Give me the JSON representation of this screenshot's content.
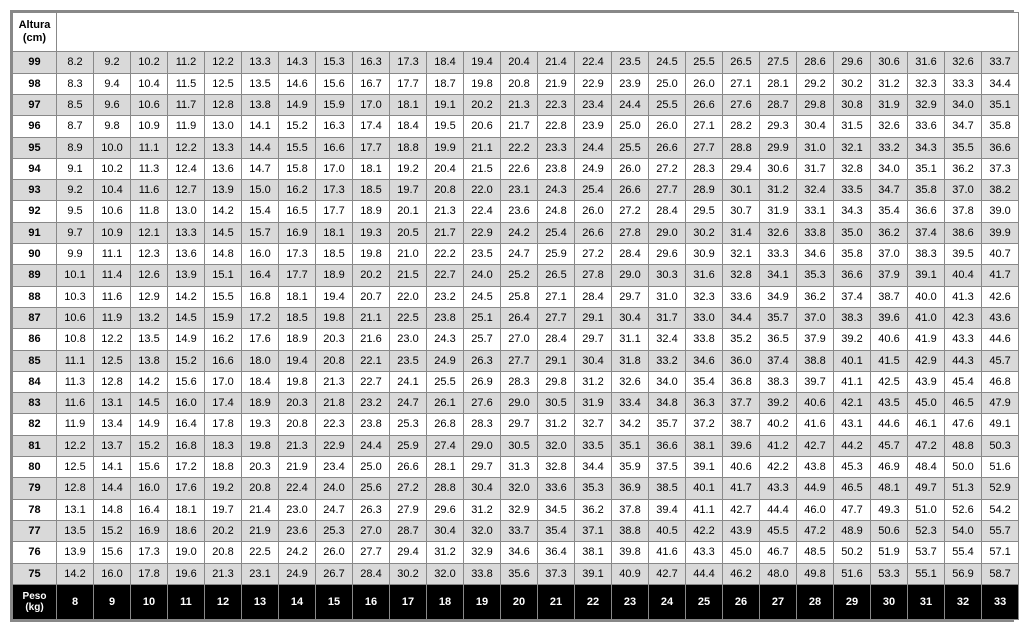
{
  "table": {
    "type": "table",
    "header_label": "Altura\n(cm)",
    "footer_label": "Peso\n(kg)",
    "background_color": "#ffffff",
    "shaded_row_color": "#d9d9d9",
    "footer_bg": "#000000",
    "footer_fg": "#ffffff",
    "border_color": "#888888",
    "font_size": 11,
    "alturas": [
      99,
      98,
      97,
      96,
      95,
      94,
      93,
      92,
      91,
      90,
      89,
      88,
      87,
      86,
      85,
      84,
      83,
      82,
      81,
      80,
      79,
      78,
      77,
      76,
      75
    ],
    "shaded_alturas": [
      99,
      97,
      95,
      93,
      91,
      89,
      87,
      85,
      83,
      81,
      79,
      77,
      75
    ],
    "pesos": [
      8,
      9,
      10,
      11,
      12,
      13,
      14,
      15,
      16,
      17,
      18,
      19,
      20,
      21,
      22,
      23,
      24,
      25,
      26,
      27,
      28,
      29,
      30,
      31,
      32,
      33
    ],
    "rows": {
      "99": [
        "8.2",
        "9.2",
        "10.2",
        "11.2",
        "12.2",
        "13.3",
        "14.3",
        "15.3",
        "16.3",
        "17.3",
        "18.4",
        "19.4",
        "20.4",
        "21.4",
        "22.4",
        "23.5",
        "24.5",
        "25.5",
        "26.5",
        "27.5",
        "28.6",
        "29.6",
        "30.6",
        "31.6",
        "32.6",
        "33.7"
      ],
      "98": [
        "8.3",
        "9.4",
        "10.4",
        "11.5",
        "12.5",
        "13.5",
        "14.6",
        "15.6",
        "16.7",
        "17.7",
        "18.7",
        "19.8",
        "20.8",
        "21.9",
        "22.9",
        "23.9",
        "25.0",
        "26.0",
        "27.1",
        "28.1",
        "29.2",
        "30.2",
        "31.2",
        "32.3",
        "33.3",
        "34.4"
      ],
      "97": [
        "8.5",
        "9.6",
        "10.6",
        "11.7",
        "12.8",
        "13.8",
        "14.9",
        "15.9",
        "17.0",
        "18.1",
        "19.1",
        "20.2",
        "21.3",
        "22.3",
        "23.4",
        "24.4",
        "25.5",
        "26.6",
        "27.6",
        "28.7",
        "29.8",
        "30.8",
        "31.9",
        "32.9",
        "34.0",
        "35.1"
      ],
      "96": [
        "8.7",
        "9.8",
        "10.9",
        "11.9",
        "13.0",
        "14.1",
        "15.2",
        "16.3",
        "17.4",
        "18.4",
        "19.5",
        "20.6",
        "21.7",
        "22.8",
        "23.9",
        "25.0",
        "26.0",
        "27.1",
        "28.2",
        "29.3",
        "30.4",
        "31.5",
        "32.6",
        "33.6",
        "34.7",
        "35.8"
      ],
      "95": [
        "8.9",
        "10.0",
        "11.1",
        "12.2",
        "13.3",
        "14.4",
        "15.5",
        "16.6",
        "17.7",
        "18.8",
        "19.9",
        "21.1",
        "22.2",
        "23.3",
        "24.4",
        "25.5",
        "26.6",
        "27.7",
        "28.8",
        "29.9",
        "31.0",
        "32.1",
        "33.2",
        "34.3",
        "35.5",
        "36.6"
      ],
      "94": [
        "9.1",
        "10.2",
        "11.3",
        "12.4",
        "13.6",
        "14.7",
        "15.8",
        "17.0",
        "18.1",
        "19.2",
        "20.4",
        "21.5",
        "22.6",
        "23.8",
        "24.9",
        "26.0",
        "27.2",
        "28.3",
        "29.4",
        "30.6",
        "31.7",
        "32.8",
        "34.0",
        "35.1",
        "36.2",
        "37.3"
      ],
      "93": [
        "9.2",
        "10.4",
        "11.6",
        "12.7",
        "13.9",
        "15.0",
        "16.2",
        "17.3",
        "18.5",
        "19.7",
        "20.8",
        "22.0",
        "23.1",
        "24.3",
        "25.4",
        "26.6",
        "27.7",
        "28.9",
        "30.1",
        "31.2",
        "32.4",
        "33.5",
        "34.7",
        "35.8",
        "37.0",
        "38.2"
      ],
      "92": [
        "9.5",
        "10.6",
        "11.8",
        "13.0",
        "14.2",
        "15.4",
        "16.5",
        "17.7",
        "18.9",
        "20.1",
        "21.3",
        "22.4",
        "23.6",
        "24.8",
        "26.0",
        "27.2",
        "28.4",
        "29.5",
        "30.7",
        "31.9",
        "33.1",
        "34.3",
        "35.4",
        "36.6",
        "37.8",
        "39.0"
      ],
      "91": [
        "9.7",
        "10.9",
        "12.1",
        "13.3",
        "14.5",
        "15.7",
        "16.9",
        "18.1",
        "19.3",
        "20.5",
        "21.7",
        "22.9",
        "24.2",
        "25.4",
        "26.6",
        "27.8",
        "29.0",
        "30.2",
        "31.4",
        "32.6",
        "33.8",
        "35.0",
        "36.2",
        "37.4",
        "38.6",
        "39.9"
      ],
      "90": [
        "9.9",
        "11.1",
        "12.3",
        "13.6",
        "14.8",
        "16.0",
        "17.3",
        "18.5",
        "19.8",
        "21.0",
        "22.2",
        "23.5",
        "24.7",
        "25.9",
        "27.2",
        "28.4",
        "29.6",
        "30.9",
        "32.1",
        "33.3",
        "34.6",
        "35.8",
        "37.0",
        "38.3",
        "39.5",
        "40.7"
      ],
      "89": [
        "10.1",
        "11.4",
        "12.6",
        "13.9",
        "15.1",
        "16.4",
        "17.7",
        "18.9",
        "20.2",
        "21.5",
        "22.7",
        "24.0",
        "25.2",
        "26.5",
        "27.8",
        "29.0",
        "30.3",
        "31.6",
        "32.8",
        "34.1",
        "35.3",
        "36.6",
        "37.9",
        "39.1",
        "40.4",
        "41.7"
      ],
      "88": [
        "10.3",
        "11.6",
        "12.9",
        "14.2",
        "15.5",
        "16.8",
        "18.1",
        "19.4",
        "20.7",
        "22.0",
        "23.2",
        "24.5",
        "25.8",
        "27.1",
        "28.4",
        "29.7",
        "31.0",
        "32.3",
        "33.6",
        "34.9",
        "36.2",
        "37.4",
        "38.7",
        "40.0",
        "41.3",
        "42.6"
      ],
      "87": [
        "10.6",
        "11.9",
        "13.2",
        "14.5",
        "15.9",
        "17.2",
        "18.5",
        "19.8",
        "21.1",
        "22.5",
        "23.8",
        "25.1",
        "26.4",
        "27.7",
        "29.1",
        "30.4",
        "31.7",
        "33.0",
        "34.4",
        "35.7",
        "37.0",
        "38.3",
        "39.6",
        "41.0",
        "42.3",
        "43.6"
      ],
      "86": [
        "10.8",
        "12.2",
        "13.5",
        "14.9",
        "16.2",
        "17.6",
        "18.9",
        "20.3",
        "21.6",
        "23.0",
        "24.3",
        "25.7",
        "27.0",
        "28.4",
        "29.7",
        "31.1",
        "32.4",
        "33.8",
        "35.2",
        "36.5",
        "37.9",
        "39.2",
        "40.6",
        "41.9",
        "43.3",
        "44.6"
      ],
      "85": [
        "11.1",
        "12.5",
        "13.8",
        "15.2",
        "16.6",
        "18.0",
        "19.4",
        "20.8",
        "22.1",
        "23.5",
        "24.9",
        "26.3",
        "27.7",
        "29.1",
        "30.4",
        "31.8",
        "33.2",
        "34.6",
        "36.0",
        "37.4",
        "38.8",
        "40.1",
        "41.5",
        "42.9",
        "44.3",
        "45.7"
      ],
      "84": [
        "11.3",
        "12.8",
        "14.2",
        "15.6",
        "17.0",
        "18.4",
        "19.8",
        "21.3",
        "22.7",
        "24.1",
        "25.5",
        "26.9",
        "28.3",
        "29.8",
        "31.2",
        "32.6",
        "34.0",
        "35.4",
        "36.8",
        "38.3",
        "39.7",
        "41.1",
        "42.5",
        "43.9",
        "45.4",
        "46.8"
      ],
      "83": [
        "11.6",
        "13.1",
        "14.5",
        "16.0",
        "17.4",
        "18.9",
        "20.3",
        "21.8",
        "23.2",
        "24.7",
        "26.1",
        "27.6",
        "29.0",
        "30.5",
        "31.9",
        "33.4",
        "34.8",
        "36.3",
        "37.7",
        "39.2",
        "40.6",
        "42.1",
        "43.5",
        "45.0",
        "46.5",
        "47.9"
      ],
      "82": [
        "11.9",
        "13.4",
        "14.9",
        "16.4",
        "17.8",
        "19.3",
        "20.8",
        "22.3",
        "23.8",
        "25.3",
        "26.8",
        "28.3",
        "29.7",
        "31.2",
        "32.7",
        "34.2",
        "35.7",
        "37.2",
        "38.7",
        "40.2",
        "41.6",
        "43.1",
        "44.6",
        "46.1",
        "47.6",
        "49.1"
      ],
      "81": [
        "12.2",
        "13.7",
        "15.2",
        "16.8",
        "18.3",
        "19.8",
        "21.3",
        "22.9",
        "24.4",
        "25.9",
        "27.4",
        "29.0",
        "30.5",
        "32.0",
        "33.5",
        "35.1",
        "36.6",
        "38.1",
        "39.6",
        "41.2",
        "42.7",
        "44.2",
        "45.7",
        "47.2",
        "48.8",
        "50.3"
      ],
      "80": [
        "12.5",
        "14.1",
        "15.6",
        "17.2",
        "18.8",
        "20.3",
        "21.9",
        "23.4",
        "25.0",
        "26.6",
        "28.1",
        "29.7",
        "31.3",
        "32.8",
        "34.4",
        "35.9",
        "37.5",
        "39.1",
        "40.6",
        "42.2",
        "43.8",
        "45.3",
        "46.9",
        "48.4",
        "50.0",
        "51.6"
      ],
      "79": [
        "12.8",
        "14.4",
        "16.0",
        "17.6",
        "19.2",
        "20.8",
        "22.4",
        "24.0",
        "25.6",
        "27.2",
        "28.8",
        "30.4",
        "32.0",
        "33.6",
        "35.3",
        "36.9",
        "38.5",
        "40.1",
        "41.7",
        "43.3",
        "44.9",
        "46.5",
        "48.1",
        "49.7",
        "51.3",
        "52.9"
      ],
      "78": [
        "13.1",
        "14.8",
        "16.4",
        "18.1",
        "19.7",
        "21.4",
        "23.0",
        "24.7",
        "26.3",
        "27.9",
        "29.6",
        "31.2",
        "32.9",
        "34.5",
        "36.2",
        "37.8",
        "39.4",
        "41.1",
        "42.7",
        "44.4",
        "46.0",
        "47.7",
        "49.3",
        "51.0",
        "52.6",
        "54.2"
      ],
      "77": [
        "13.5",
        "15.2",
        "16.9",
        "18.6",
        "20.2",
        "21.9",
        "23.6",
        "25.3",
        "27.0",
        "28.7",
        "30.4",
        "32.0",
        "33.7",
        "35.4",
        "37.1",
        "38.8",
        "40.5",
        "42.2",
        "43.9",
        "45.5",
        "47.2",
        "48.9",
        "50.6",
        "52.3",
        "54.0",
        "55.7"
      ],
      "76": [
        "13.9",
        "15.6",
        "17.3",
        "19.0",
        "20.8",
        "22.5",
        "24.2",
        "26.0",
        "27.7",
        "29.4",
        "31.2",
        "32.9",
        "34.6",
        "36.4",
        "38.1",
        "39.8",
        "41.6",
        "43.3",
        "45.0",
        "46.7",
        "48.5",
        "50.2",
        "51.9",
        "53.7",
        "55.4",
        "57.1"
      ],
      "75": [
        "14.2",
        "16.0",
        "17.8",
        "19.6",
        "21.3",
        "23.1",
        "24.9",
        "26.7",
        "28.4",
        "30.2",
        "32.0",
        "33.8",
        "35.6",
        "37.3",
        "39.1",
        "40.9",
        "42.7",
        "44.4",
        "46.2",
        "48.0",
        "49.8",
        "51.6",
        "53.3",
        "55.1",
        "56.9",
        "58.7"
      ]
    }
  }
}
